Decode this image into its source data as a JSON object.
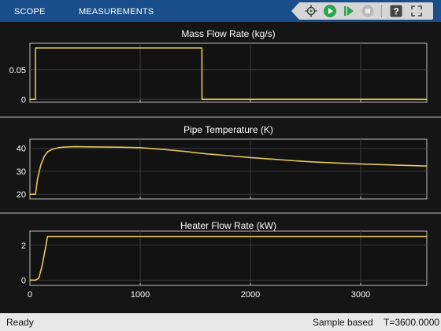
{
  "toolbar": {
    "tabs": [
      "SCOPE",
      "MEASUREMENTS"
    ],
    "icons": [
      "signal-select-icon",
      "run-icon",
      "step-forward-icon",
      "stop-icon",
      "help-icon",
      "expand-icon"
    ]
  },
  "status": {
    "ready": "Ready",
    "mode": "Sample based",
    "time": "T=3600.0000"
  },
  "colors": {
    "trace": "#e7c85a",
    "axes_bg": "#121212",
    "grid": "#3a3a3a",
    "text": "#ffffff"
  },
  "chart_data": [
    {
      "type": "line",
      "title": "Mass Flow Rate (kg/s)",
      "xlim": [
        0,
        3600
      ],
      "ylim": [
        -0.005,
        0.095
      ],
      "xticks": [
        0,
        1000,
        2000,
        3000
      ],
      "yticks": [
        0,
        0.05
      ],
      "ytick_labels": [
        "0",
        "0.05"
      ],
      "show_x_labels": false,
      "series": [
        {
          "x": [
            0,
            50,
            51,
            1560,
            1561,
            3600
          ],
          "y": [
            0,
            0,
            0.087,
            0.087,
            0,
            0
          ]
        }
      ]
    },
    {
      "type": "line",
      "title": "Pipe Temperature (K)",
      "xlim": [
        0,
        3600
      ],
      "ylim": [
        18,
        44
      ],
      "xticks": [
        0,
        1000,
        2000,
        3000
      ],
      "yticks": [
        20,
        30,
        40
      ],
      "ytick_labels": [
        "20",
        "30",
        "40"
      ],
      "show_x_labels": false,
      "series": [
        {
          "x": [
            0,
            50,
            70,
            100,
            130,
            160,
            200,
            250,
            300,
            400,
            600,
            800,
            1000,
            1200,
            1400,
            1600,
            1800,
            2000,
            2200,
            2400,
            2600,
            2800,
            3000,
            3200,
            3400,
            3600
          ],
          "y": [
            20,
            20,
            27,
            33,
            36.5,
            38.5,
            39.6,
            40.2,
            40.5,
            40.7,
            40.6,
            40.5,
            40.3,
            39.6,
            38.7,
            37.6,
            36.8,
            36.0,
            35.3,
            34.6,
            34.0,
            33.6,
            33.2,
            32.9,
            32.6,
            32.3
          ]
        }
      ]
    },
    {
      "type": "line",
      "title": "Heater Flow Rate (kW)",
      "xlim": [
        0,
        3600
      ],
      "ylim": [
        -0.3,
        2.8
      ],
      "xticks": [
        0,
        1000,
        2000,
        3000
      ],
      "yticks": [
        0,
        2
      ],
      "ytick_labels": [
        "0",
        "2"
      ],
      "show_x_labels": true,
      "xtick_labels": [
        "0",
        "1000",
        "2000",
        "3000"
      ],
      "series": [
        {
          "x": [
            0,
            50,
            80,
            110,
            140,
            160,
            3600
          ],
          "y": [
            0,
            0,
            0.1,
            0.8,
            1.8,
            2.5,
            2.5
          ]
        }
      ]
    }
  ]
}
